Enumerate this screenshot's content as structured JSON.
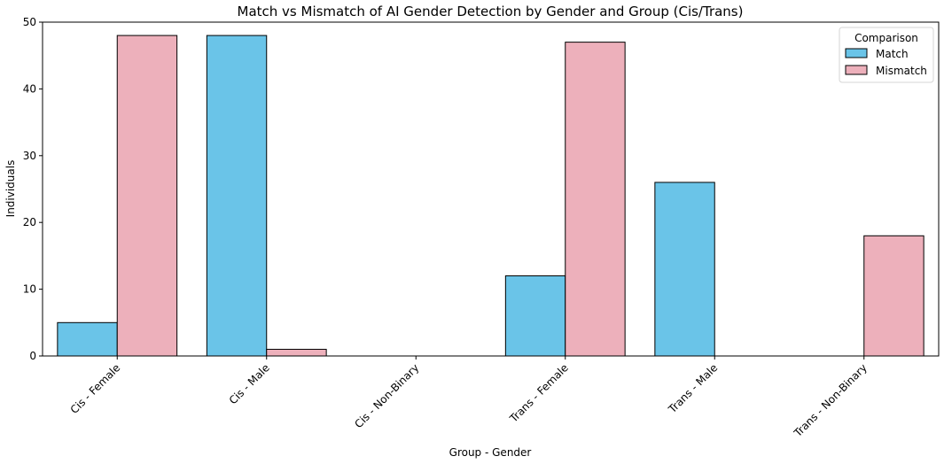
{
  "chart_data": {
    "type": "bar",
    "title": "Match vs Mismatch of AI Gender Detection by Gender and Group (Cis/Trans)",
    "xlabel": "Group - Gender",
    "ylabel": "Individuals",
    "categories": [
      "Cis - Female",
      "Cis - Male",
      "Cis - Non-Binary",
      "Trans - Female",
      "Trans - Male",
      "Trans - Non-Binary"
    ],
    "series": [
      {
        "name": "Match",
        "color": "#6ac4e8",
        "values": [
          5,
          48,
          0,
          12,
          26,
          0
        ]
      },
      {
        "name": "Mismatch",
        "color": "#edb0bb",
        "values": [
          48,
          1,
          0,
          47,
          0,
          18
        ]
      }
    ],
    "ylim": [
      0,
      50
    ],
    "yticks": [
      0,
      10,
      20,
      30,
      40,
      50
    ],
    "grid": false,
    "legend": {
      "title": "Comparison",
      "placement": "top-right"
    }
  }
}
